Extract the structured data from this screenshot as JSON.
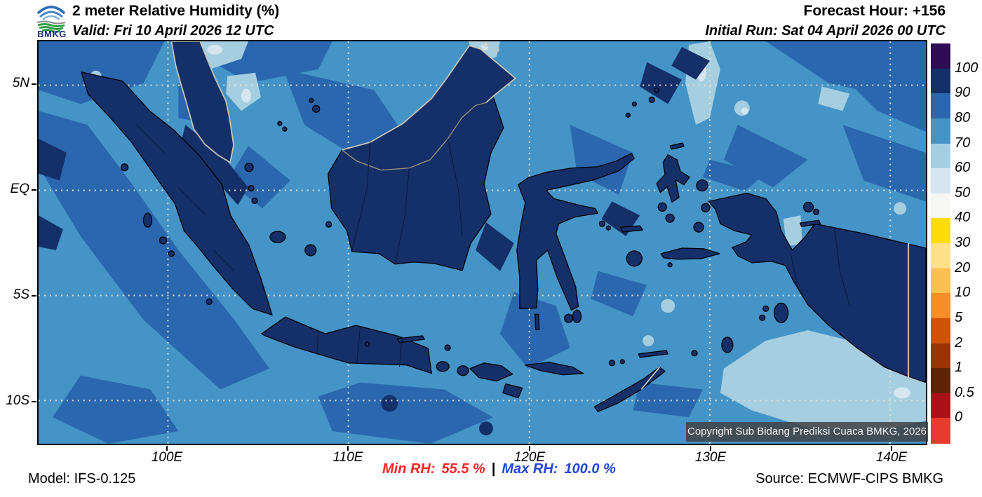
{
  "header": {
    "logo_text": "BMKG",
    "title": "2 meter Relative Humidity (%)",
    "valid": "Valid: Fri 10 April 2026 12 UTC",
    "forecast_hour": "Forecast Hour: +156",
    "initial_run": "Initial Run: Sat 04 April 2026 00 UTC"
  },
  "map": {
    "lat_labels": [
      "5N",
      "EQ",
      "5S",
      "10S"
    ],
    "lon_labels": [
      "100E",
      "110E",
      "120E",
      "130E",
      "140E"
    ],
    "copyright": "Copyright Sub Bidang Prediksi Cuaca BMKG, 2026"
  },
  "colorbar": {
    "labels": [
      "100",
      "90",
      "80",
      "70",
      "60",
      "50",
      "40",
      "30",
      "20",
      "10",
      "5",
      "2",
      "1",
      "0.5",
      "0"
    ],
    "colors": [
      "#2e0d56",
      "#152f69",
      "#2b67ae",
      "#4494c8",
      "#a6cee1",
      "#d5e6f1",
      "#f6f6f4",
      "#fbdb08",
      "#fde088",
      "#fdc050",
      "#f98d27",
      "#cf5207",
      "#9c3305",
      "#5f2408",
      "#ab1218",
      "#e63b2d"
    ]
  },
  "footer": {
    "model": "Model: IFS-0.125",
    "min_label": "Min RH:",
    "min_value": "55.5 %",
    "separator": "|",
    "max_label": "Max RH:",
    "max_value": "100.0 %",
    "source": "Source: ECMWF-CIPS BMKG",
    "min_color": "#f82525",
    "max_color": "#2244dd"
  },
  "chart_data": {
    "type": "heatmap",
    "title": "2 meter Relative Humidity (%)",
    "units": "%",
    "legend_position": "right",
    "legend_levels": [
      0,
      0.5,
      1,
      2,
      5,
      10,
      20,
      30,
      40,
      50,
      60,
      70,
      80,
      90,
      100
    ],
    "lon_range": [
      92.8,
      142.0
    ],
    "lat_range": [
      -12.0,
      7.1
    ],
    "min_rh": 55.5,
    "max_rh": 100.0,
    "dominant_bands": [
      "70-80 over open ocean",
      "80-90 over coastal seas",
      "90-100 over all major landmasses",
      "50-70 patches N of Malaysia, Arafura Sea, W Pacific"
    ]
  }
}
